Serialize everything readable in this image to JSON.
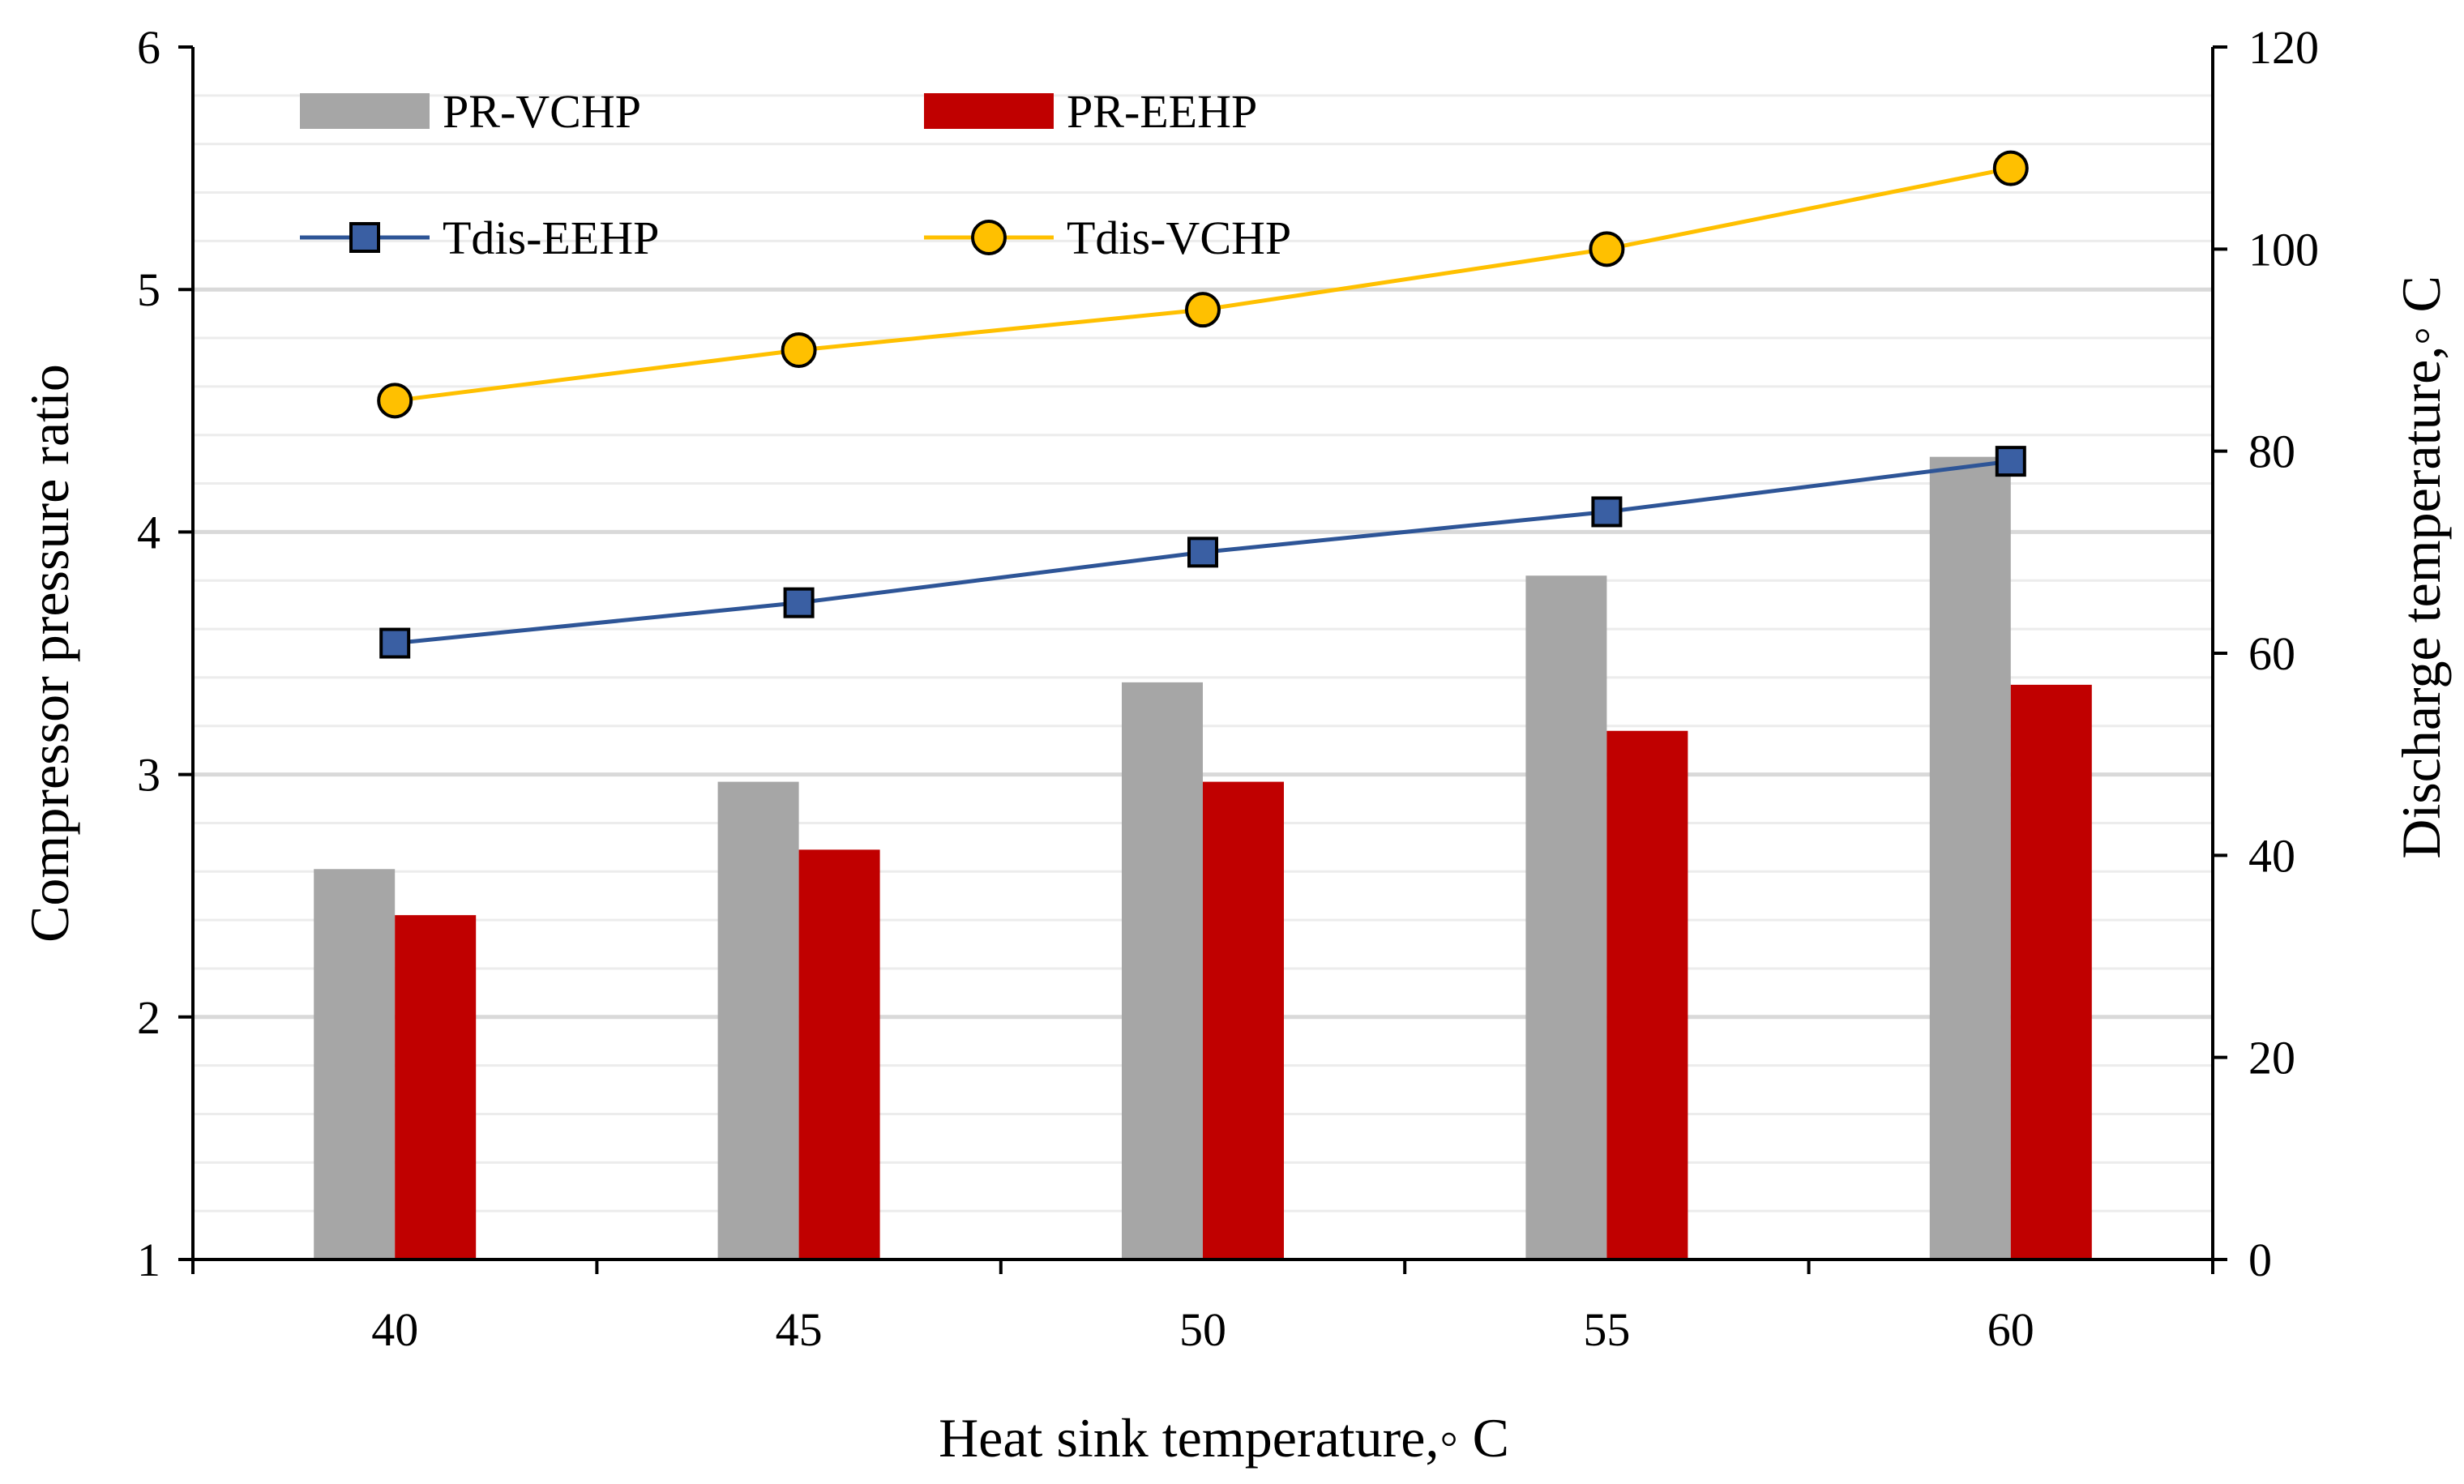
{
  "chart_data": {
    "type": "bar",
    "x_axis": {
      "label": "Heat sink temperature,◦ C",
      "categories": [
        "40",
        "45",
        "50",
        "55",
        "60"
      ]
    },
    "y_axis_left": {
      "label": "Compressor pressure ratio",
      "range": [
        1,
        6
      ],
      "ticks": [
        "1",
        "2",
        "3",
        "4",
        "5",
        "6"
      ],
      "minor_step": 0.2
    },
    "y_axis_right": {
      "label": "Discharge temperature,◦ C",
      "range": [
        0,
        120
      ],
      "ticks": [
        "0",
        "20",
        "40",
        "60",
        "80",
        "100",
        "120"
      ]
    },
    "grid": true,
    "legend_position": "top-left",
    "series": [
      {
        "name": "PR-VCHP",
        "kind": "bar",
        "axis": "left",
        "color": "#a6a6a6",
        "values": [
          2.61,
          2.97,
          3.38,
          3.82,
          4.31
        ]
      },
      {
        "name": "PR-EEHP",
        "kind": "bar",
        "axis": "left",
        "color": "#c00000",
        "values": [
          2.42,
          2.69,
          2.97,
          3.18,
          3.37
        ]
      },
      {
        "name": "Tdis-EEHP",
        "kind": "line",
        "marker": "square",
        "axis": "right",
        "color": "#2e5597",
        "marker_fill": "#3a5fa3",
        "values": [
          61,
          65,
          70,
          74,
          79
        ]
      },
      {
        "name": "Tdis-VCHP",
        "kind": "line",
        "marker": "circle",
        "axis": "right",
        "color": "#ffc000",
        "marker_fill": "#ffc000",
        "values": [
          85,
          90,
          94,
          100,
          108
        ]
      }
    ]
  }
}
